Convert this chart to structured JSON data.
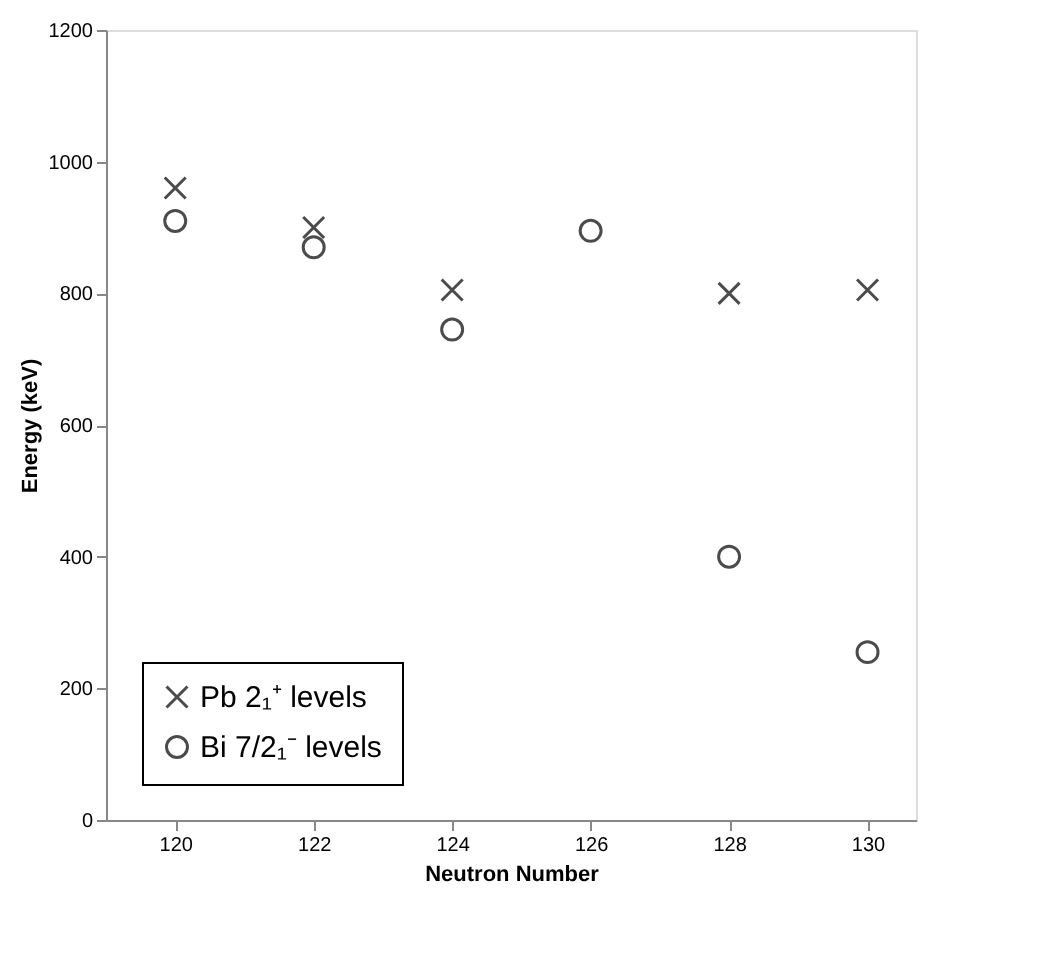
{
  "chart_data": {
    "type": "scatter",
    "xlabel": "Neutron Number",
    "ylabel": "Energy (keV)",
    "x": [
      120,
      122,
      124,
      126,
      128,
      130
    ],
    "series": [
      {
        "name": "Pb 2₁⁺ levels",
        "color": "#000000",
        "marker": "cross",
        "values": [
          960,
          900,
          805,
          null,
          800,
          805
        ]
      },
      {
        "name": "Bi 7/2₁⁻ levels",
        "color": "#000000",
        "marker": "circle",
        "values": [
          910,
          870,
          745,
          895,
          400,
          255
        ]
      }
    ],
    "xlim": [
      119,
      130.7
    ],
    "xticks": [
      120,
      122,
      124,
      126,
      128,
      130
    ],
    "ylim": [
      0,
      1200
    ],
    "yticks": [
      0,
      200,
      400,
      600,
      800,
      1000,
      1200
    ],
    "grid": false,
    "legend": "bottom left"
  }
}
